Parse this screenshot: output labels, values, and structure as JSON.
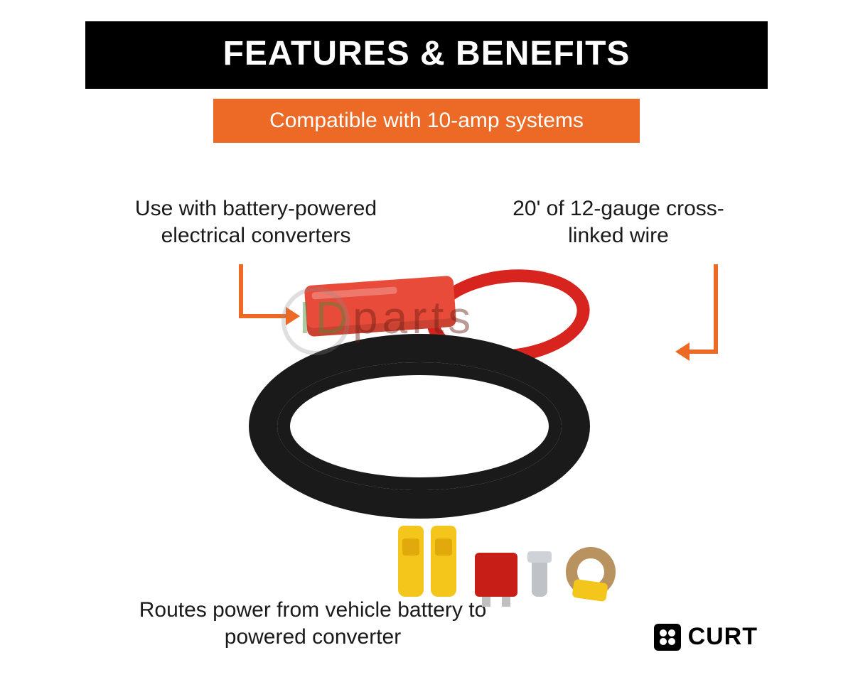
{
  "colors": {
    "title_bg": "#000000",
    "title_fg": "#ffffff",
    "accent": "#ec6a26",
    "text": "#1a1a1a",
    "wire_black": "#1a1a1a",
    "wire_red": "#d8241f",
    "fuse_holder": "#e84b3a",
    "connector_yellow": "#f4c51a",
    "ato_fuse": "#c81e18",
    "ring_terminal": "#b8935f",
    "screw": "#bfc3c7",
    "background": "#ffffff"
  },
  "typography": {
    "title_fontsize": 48,
    "title_weight": 800,
    "subtitle_fontsize": 30,
    "callout_fontsize": 30,
    "brand_fontsize": 34
  },
  "header": {
    "title": "FEATURES & BENEFITS",
    "subtitle": "Compatible with 10-amp systems"
  },
  "callouts": {
    "left": "Use with battery-powered electrical converters",
    "right": "20' of 12-gauge cross-linked wire",
    "bottom": "Routes power from vehicle battery to powered converter"
  },
  "watermark": {
    "left": "ID",
    "right": "parts"
  },
  "brand": {
    "name": "CURT"
  },
  "product": {
    "type": "infographic",
    "components": [
      {
        "name": "black-wire-coil",
        "color": "#1a1a1a"
      },
      {
        "name": "red-wire-loop",
        "color": "#d8241f"
      },
      {
        "name": "fuse-holder",
        "color": "#e84b3a"
      },
      {
        "name": "butt-connector",
        "count": 2,
        "color": "#f4c51a"
      },
      {
        "name": "ato-fuse",
        "color": "#c81e18"
      },
      {
        "name": "self-tap-screw",
        "color": "#bfc3c7"
      },
      {
        "name": "ring-terminal",
        "color": "#b8935f",
        "crimp_color": "#f4c51a"
      }
    ],
    "arrow_color": "#ec6a26"
  }
}
